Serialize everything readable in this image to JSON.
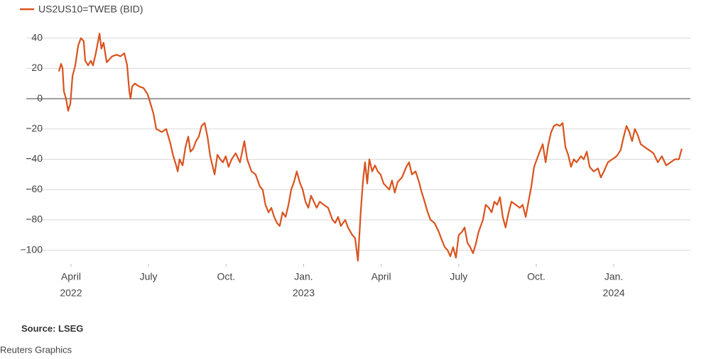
{
  "chart_data": {
    "type": "line",
    "series": [
      {
        "name": "US2US10=TWEB (BID)",
        "color": "#d9531e",
        "x": [
          2022.211,
          2022.218,
          2022.223,
          2022.227,
          2022.234,
          2022.241,
          2022.248,
          2022.255,
          2022.264,
          2022.273,
          2022.282,
          2022.291,
          2022.296,
          2022.305,
          2022.314,
          2022.321,
          2022.33,
          2022.342,
          2022.348,
          2022.355,
          2022.365,
          2022.374,
          2022.383,
          2022.397,
          2022.41,
          2022.422,
          2022.431,
          2022.438,
          2022.442,
          2022.447,
          2022.456,
          2022.47,
          2022.484,
          2022.497,
          2022.506,
          2022.516,
          2022.525,
          2022.534,
          2022.543,
          2022.557,
          2022.571,
          2022.58,
          2022.589,
          2022.594,
          2022.6,
          2022.61,
          2022.619,
          2022.628,
          2022.635,
          2022.644,
          2022.653,
          2022.662,
          2022.671,
          2022.681,
          2022.69,
          2022.699,
          2022.706,
          2022.713,
          2022.722,
          2022.731,
          2022.74,
          2022.749,
          2022.758,
          2022.768,
          2022.781,
          2022.795,
          2022.809,
          2022.818,
          2022.832,
          2022.845,
          2022.859,
          2022.868,
          2022.877,
          2022.887,
          2022.896,
          2022.905,
          2022.914,
          2022.923,
          2022.932,
          2022.942,
          2022.951,
          2022.96,
          2022.969,
          2022.978,
          2022.987,
          2022.997,
          2023.006,
          2023.015,
          2023.024,
          2023.033,
          2023.042,
          2023.052,
          2023.065,
          2023.079,
          2023.093,
          2023.102,
          2023.111,
          2023.12,
          2023.134,
          2023.143,
          2023.157,
          2023.166,
          2023.175,
          2023.184,
          2023.191,
          2023.198,
          2023.205,
          2023.212,
          2023.221,
          2023.23,
          2023.239,
          2023.248,
          2023.258,
          2023.267,
          2023.276,
          2023.285,
          2023.294,
          2023.303,
          2023.317,
          2023.331,
          2023.34,
          2023.349,
          2023.361,
          2023.372,
          2023.381,
          2023.39,
          2023.4,
          2023.409,
          2023.422,
          2023.436,
          2023.445,
          2023.455,
          2023.464,
          2023.473,
          2023.482,
          2023.491,
          2023.5,
          2023.51,
          2023.519,
          2023.528,
          2023.537,
          2023.546,
          2023.555,
          2023.564,
          2023.578,
          2023.587,
          2023.597,
          2023.606,
          2023.615,
          2023.624,
          2023.633,
          2023.642,
          2023.651,
          2023.661,
          2023.67,
          2023.684,
          2023.697,
          2023.706,
          2023.716,
          2023.725,
          2023.734,
          2023.743,
          2023.752,
          2023.761,
          2023.771,
          2023.78,
          2023.789,
          2023.798,
          2023.807,
          2023.816,
          2023.826,
          2023.835,
          2023.844,
          2023.853,
          2023.862,
          2023.871,
          2023.88,
          2023.894,
          2023.903,
          2023.913,
          2023.922,
          2023.935,
          2023.949,
          2023.958,
          2023.968,
          2023.981,
          2023.995,
          2024.009,
          2024.022,
          2024.032,
          2024.041,
          2024.05,
          2024.059,
          2024.068,
          2024.077,
          2024.087,
          2024.1,
          2024.114,
          2024.128,
          2024.142,
          2024.155,
          2024.169,
          2024.183,
          2024.197,
          2024.21,
          2024.219
        ],
        "values": [
          18,
          23,
          20,
          5,
          0,
          -8,
          -3,
          15,
          22,
          35,
          40,
          38,
          25,
          22,
          25,
          22,
          30,
          43,
          33,
          37,
          24,
          26,
          28,
          29,
          28,
          30,
          22,
          5,
          0,
          8,
          10,
          8,
          7,
          3,
          -3,
          -10,
          -20,
          -21,
          -22,
          -20,
          -30,
          -38,
          -44,
          -48,
          -40,
          -44,
          -32,
          -25,
          -35,
          -33,
          -28,
          -25,
          -18,
          -16,
          -25,
          -38,
          -44,
          -50,
          -37,
          -40,
          -42,
          -38,
          -45,
          -40,
          -36,
          -42,
          -28,
          -40,
          -48,
          -50,
          -58,
          -60,
          -70,
          -75,
          -72,
          -78,
          -82,
          -84,
          -75,
          -78,
          -70,
          -60,
          -55,
          -48,
          -55,
          -60,
          -68,
          -72,
          -64,
          -68,
          -72,
          -68,
          -70,
          -72,
          -80,
          -82,
          -78,
          -84,
          -80,
          -85,
          -90,
          -92,
          -107,
          -75,
          -55,
          -42,
          -56,
          -40,
          -48,
          -44,
          -48,
          -50,
          -56,
          -58,
          -60,
          -54,
          -62,
          -55,
          -52,
          -45,
          -42,
          -50,
          -48,
          -55,
          -62,
          -68,
          -75,
          -80,
          -82,
          -88,
          -93,
          -98,
          -100,
          -104,
          -98,
          -105,
          -90,
          -88,
          -85,
          -95,
          -98,
          -102,
          -96,
          -88,
          -80,
          -70,
          -72,
          -75,
          -68,
          -70,
          -65,
          -78,
          -85,
          -75,
          -68,
          -70,
          -72,
          -70,
          -78,
          -68,
          -58,
          -45,
          -40,
          -35,
          -30,
          -42,
          -30,
          -22,
          -18,
          -17,
          -18,
          -16,
          -32,
          -37,
          -45,
          -40,
          -42,
          -38,
          -40,
          -35,
          -45,
          -48,
          -46,
          -52,
          -48,
          -42,
          -40,
          -38,
          -34,
          -25,
          -18,
          -22,
          -28,
          -20,
          -24,
          -30,
          -32,
          -34,
          -36,
          -42,
          -38,
          -44,
          -42,
          -40,
          -40,
          -33
        ]
      }
    ],
    "xlim": [
      2022.17,
      2024.247
    ],
    "xticks": [
      {
        "value": 2022.25,
        "label": [
          "April",
          "2022"
        ]
      },
      {
        "value": 2022.5,
        "label": [
          "July"
        ]
      },
      {
        "value": 2022.75,
        "label": [
          "Oct."
        ]
      },
      {
        "value": 2023.0,
        "label": [
          "Jan.",
          "2023"
        ]
      },
      {
        "value": 2023.25,
        "label": [
          "April"
        ]
      },
      {
        "value": 2023.5,
        "label": [
          "July"
        ]
      },
      {
        "value": 2023.75,
        "label": [
          "Oct."
        ]
      },
      {
        "value": 2024.0,
        "label": [
          "Jan.",
          "2024"
        ]
      }
    ],
    "ylim": [
      -110,
      45
    ],
    "yticks": [
      {
        "value": -100,
        "label": "−100"
      },
      {
        "value": -80,
        "label": "−80"
      },
      {
        "value": -60,
        "label": "−60"
      },
      {
        "value": -40,
        "label": "−40"
      },
      {
        "value": -20,
        "label": "−20"
      },
      0,
      20,
      40
    ],
    "grid": true,
    "source": "Source: LSEG",
    "credit": "Reuters Graphics"
  }
}
